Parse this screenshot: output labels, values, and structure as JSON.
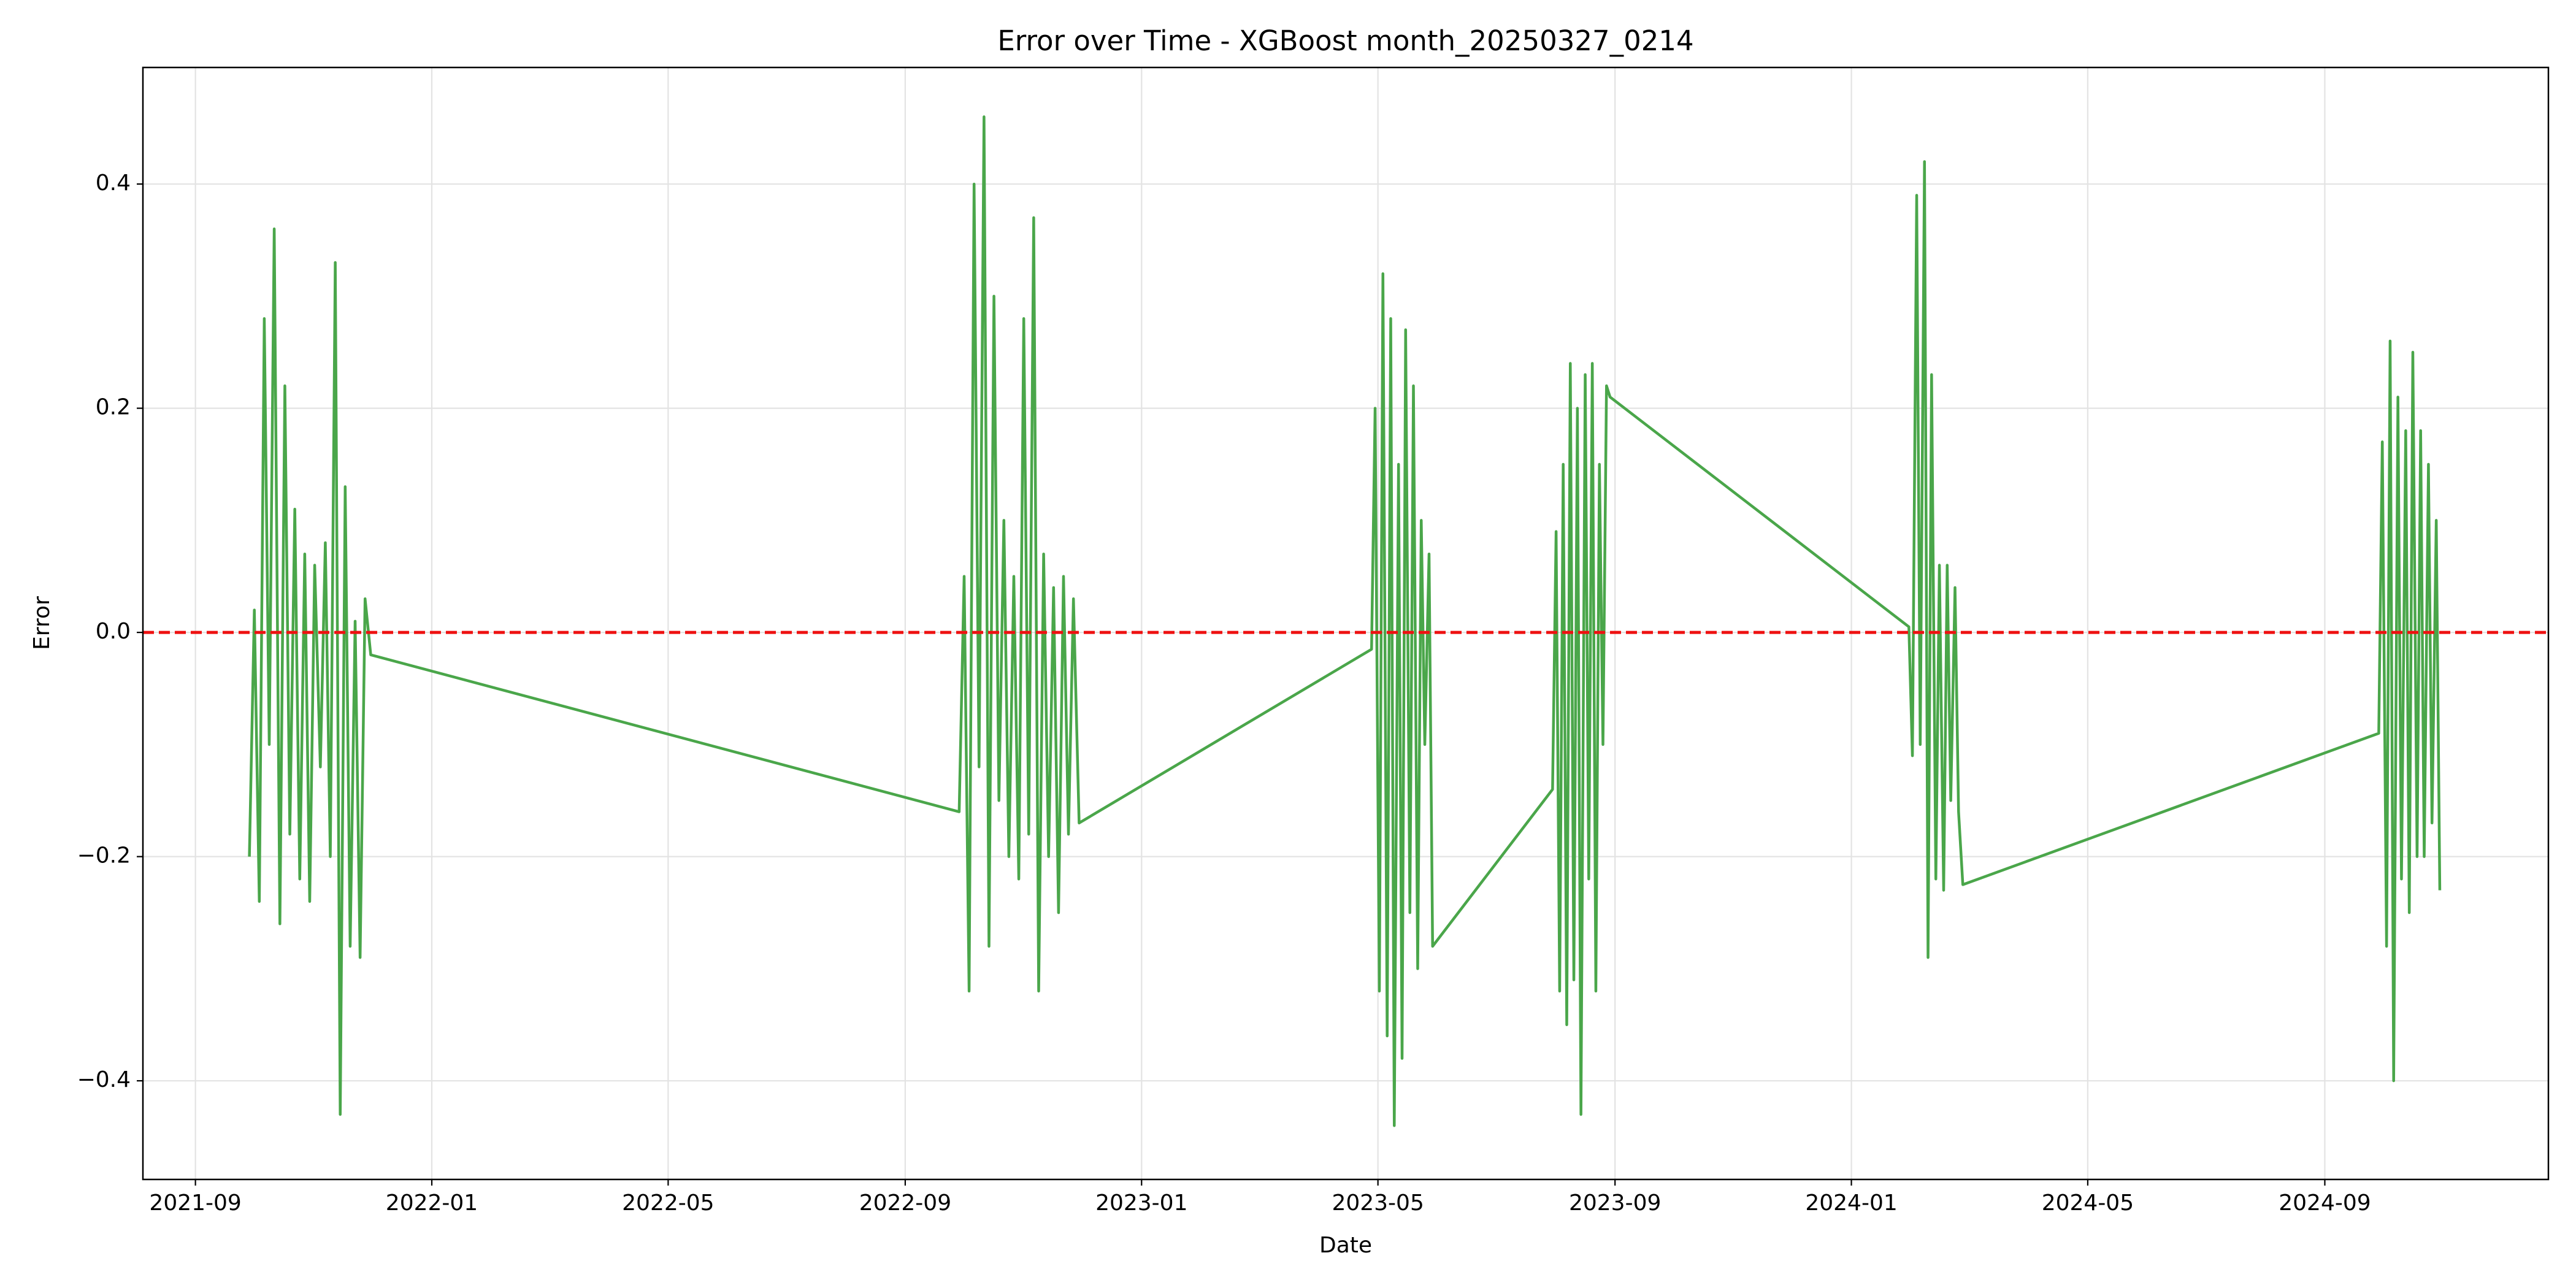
{
  "chart_data": {
    "type": "line",
    "title": "Error over Time - XGBoost month_20250327_0214",
    "x_label": "Date",
    "y_label": "Error",
    "x": [
      2021.743,
      2021.75,
      2021.757,
      2021.764,
      2021.771,
      2021.778,
      2021.786,
      2021.793,
      2021.8,
      2021.807,
      2021.814,
      2021.821,
      2021.828,
      2021.835,
      2021.843,
      2021.85,
      2021.857,
      2021.864,
      2021.871,
      2021.878,
      2021.885,
      2021.892,
      2021.899,
      2021.906,
      2021.914,
      2022.743,
      2022.75,
      2022.757,
      2022.764,
      2022.771,
      2022.778,
      2022.785,
      2022.792,
      2022.799,
      2022.806,
      2022.813,
      2022.82,
      2022.827,
      2022.834,
      2022.841,
      2022.848,
      2022.855,
      2022.862,
      2022.869,
      2022.876,
      2022.883,
      2022.89,
      2022.897,
      2022.904,
      2022.912,
      2023.324,
      2023.329,
      2023.335,
      2023.34,
      2023.346,
      2023.351,
      2023.356,
      2023.362,
      2023.367,
      2023.372,
      2023.378,
      2023.383,
      2023.389,
      2023.394,
      2023.399,
      2023.405,
      2023.41,
      2023.579,
      2023.584,
      2023.589,
      2023.594,
      2023.599,
      2023.604,
      2023.609,
      2023.614,
      2023.619,
      2023.625,
      2023.63,
      2023.635,
      2023.64,
      2023.645,
      2023.65,
      2023.655,
      2023.66,
      2024.081,
      2024.086,
      2024.092,
      2024.097,
      2024.103,
      2024.108,
      2024.113,
      2024.119,
      2024.124,
      2024.13,
      2024.135,
      2024.14,
      2024.146,
      2024.151,
      2024.157,
      2024.743,
      2024.748,
      2024.754,
      2024.759,
      2024.764,
      2024.77,
      2024.775,
      2024.781,
      2024.786,
      2024.791,
      2024.797,
      2024.802,
      2024.807,
      2024.813,
      2024.818,
      2024.824,
      2024.829
    ],
    "series": [
      {
        "color": "#4aa64a",
        "values": [
          -0.2,
          0.02,
          -0.24,
          0.28,
          -0.1,
          0.36,
          -0.26,
          0.22,
          -0.18,
          0.11,
          -0.22,
          0.07,
          -0.24,
          0.06,
          -0.12,
          0.08,
          -0.2,
          0.33,
          -0.43,
          0.13,
          -0.28,
          0.01,
          -0.29,
          0.03,
          -0.02,
          -0.16,
          0.05,
          -0.32,
          0.4,
          -0.12,
          0.46,
          -0.28,
          0.3,
          -0.15,
          0.1,
          -0.2,
          0.05,
          -0.22,
          0.28,
          -0.18,
          0.37,
          -0.32,
          0.07,
          -0.2,
          0.04,
          -0.25,
          0.05,
          -0.18,
          0.03,
          -0.17,
          -0.015,
          0.2,
          -0.32,
          0.32,
          -0.36,
          0.28,
          -0.44,
          0.15,
          -0.38,
          0.27,
          -0.25,
          0.22,
          -0.3,
          0.1,
          -0.1,
          0.07,
          -0.28,
          -0.14,
          0.09,
          -0.32,
          0.15,
          -0.35,
          0.24,
          -0.31,
          0.2,
          -0.43,
          0.23,
          -0.22,
          0.24,
          -0.32,
          0.15,
          -0.1,
          0.22,
          0.21,
          0.005,
          -0.11,
          0.39,
          -0.1,
          0.42,
          -0.29,
          0.23,
          -0.22,
          0.06,
          -0.23,
          0.06,
          -0.15,
          0.04,
          -0.16,
          -0.225,
          -0.09,
          0.17,
          -0.28,
          0.26,
          -0.4,
          0.21,
          -0.22,
          0.18,
          -0.25,
          0.25,
          -0.2,
          0.18,
          -0.2,
          0.15,
          -0.17,
          0.1,
          -0.23
        ]
      }
    ],
    "reference_line": {
      "value": 0,
      "color": "#ee1111"
    },
    "xlim": [
      2021.593,
      2024.982
    ],
    "xticks": [
      {
        "value": 2021.667,
        "label": "2021-09"
      },
      {
        "value": 2022.0,
        "label": "2022-01"
      },
      {
        "value": 2022.333,
        "label": "2022-05"
      },
      {
        "value": 2022.667,
        "label": "2022-09"
      },
      {
        "value": 2023.0,
        "label": "2023-01"
      },
      {
        "value": 2023.333,
        "label": "2023-05"
      },
      {
        "value": 2023.667,
        "label": "2023-09"
      },
      {
        "value": 2024.0,
        "label": "2024-01"
      },
      {
        "value": 2024.333,
        "label": "2024-05"
      },
      {
        "value": 2024.667,
        "label": "2024-09"
      }
    ],
    "ylim": [
      -0.488,
      0.504
    ],
    "yticks": [
      {
        "value": -0.4,
        "label": "−0.4"
      },
      {
        "value": -0.2,
        "label": "−0.2"
      },
      {
        "value": 0,
        "label": "0.0"
      },
      0.2,
      0.4
    ],
    "grid": true
  }
}
